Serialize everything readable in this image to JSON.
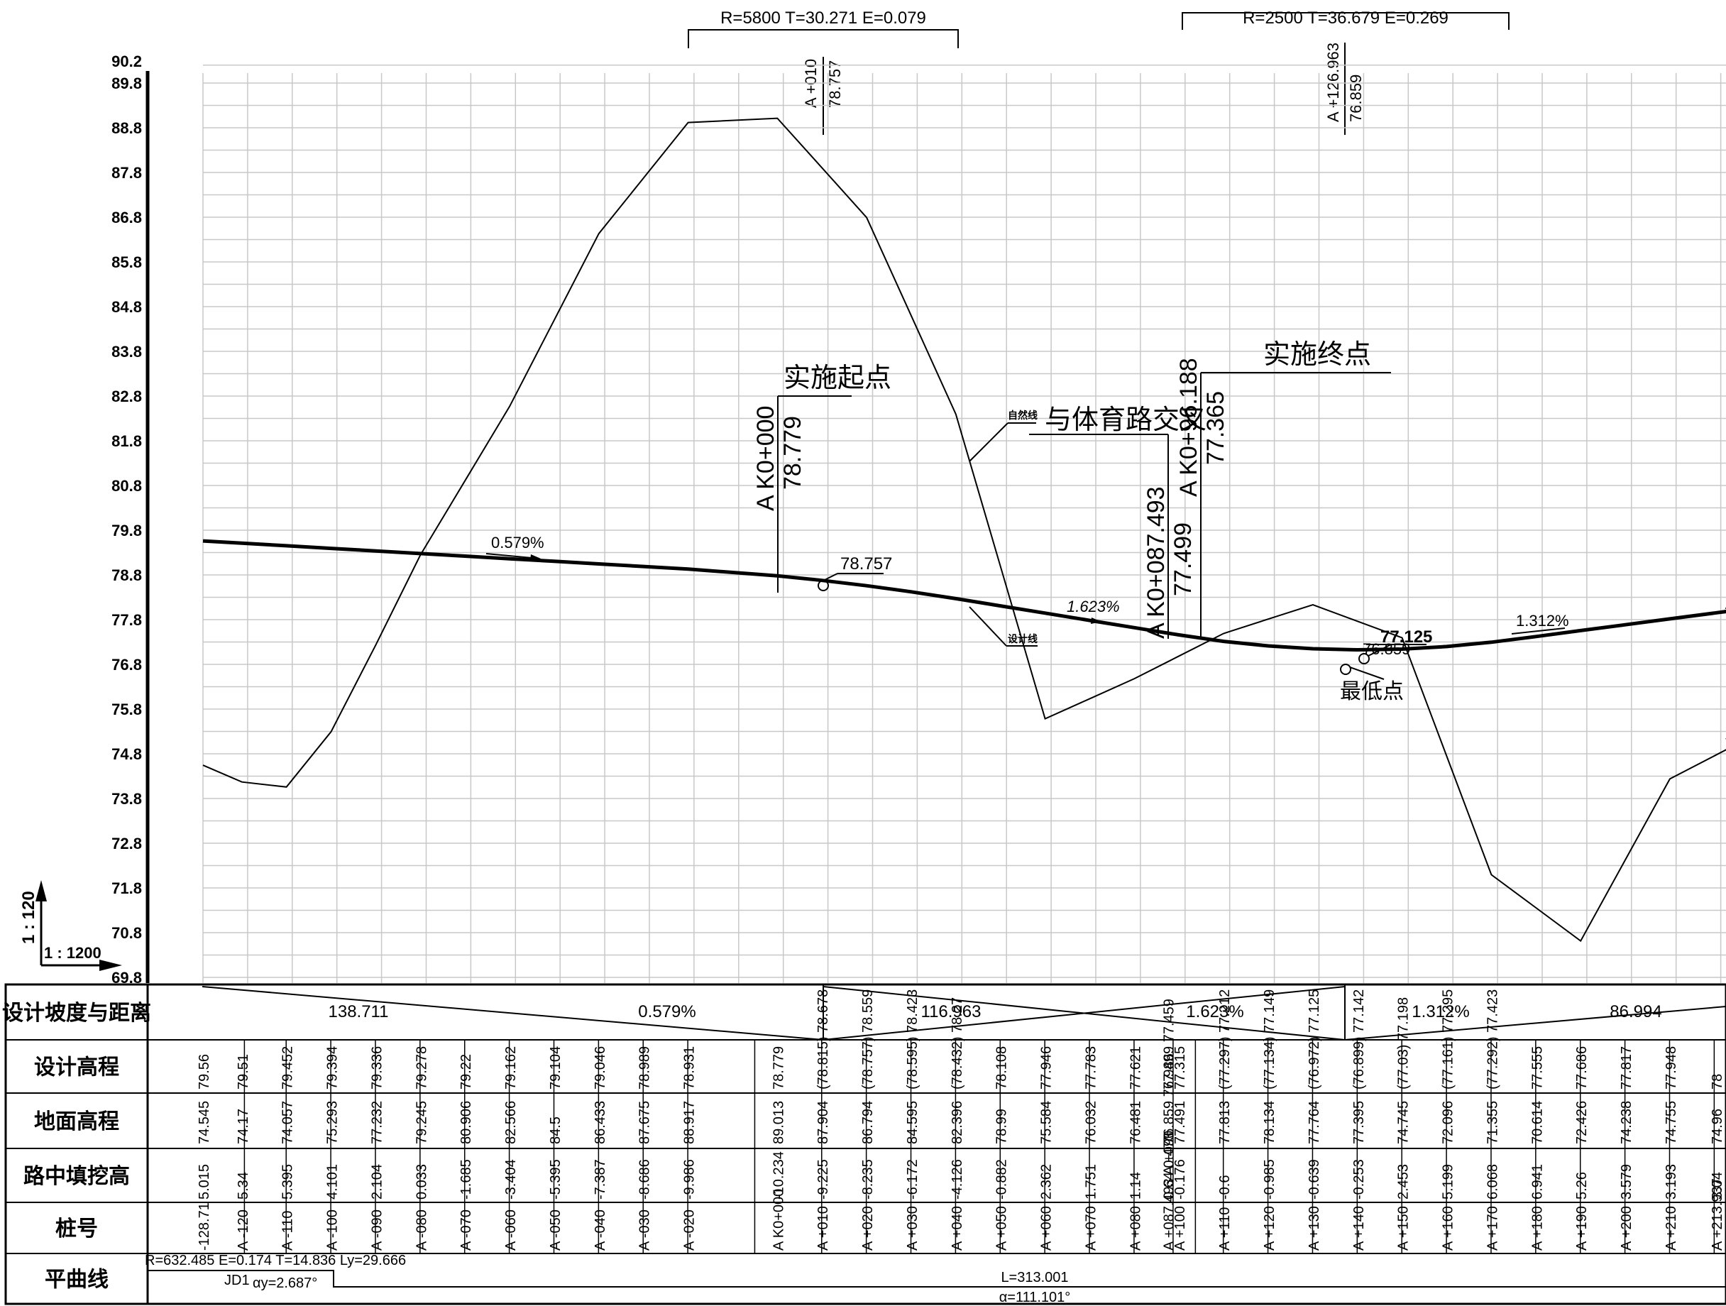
{
  "vertical_curves": [
    {
      "text": "R=5800 T=30.271 E=0.079",
      "station": "A +010",
      "elev": "78.757"
    },
    {
      "text": "R=2500 T=36.679 E=0.269",
      "station": "A +126.963",
      "elev": "76.859"
    }
  ],
  "y_axis": {
    "ticks": [
      "90.2",
      "89.8",
      "88.8",
      "87.8",
      "86.8",
      "85.8",
      "84.8",
      "83.8",
      "82.8",
      "81.8",
      "80.8",
      "79.8",
      "78.8",
      "77.8",
      "76.8",
      "75.8",
      "74.8",
      "73.8",
      "72.8",
      "71.8",
      "70.8",
      "69.8"
    ],
    "vertical_scale": "1 : 120",
    "horizontal_scale": "1 : 1200"
  },
  "annotations": {
    "start_station": "A K0+000",
    "start_elev": "78.779",
    "start_label": "实施起点",
    "end_station": "A K0+96.188",
    "end_elev": "77.365",
    "end_label": "实施终点",
    "cross_station": "A K0+087.493",
    "cross_elev": "77.499",
    "cross_label": "与体育路交叉",
    "natural_line_label": "自然线",
    "design_line_label": "设计线",
    "pvi1_elev": "78.757",
    "lowpoint_label": "最低点",
    "lowpoint_elev_a": "77.125",
    "lowpoint_elev_b": "76.859",
    "grade1": "0.579%",
    "grade2": "1.623%",
    "grade3": "1.312%"
  },
  "row_headers": [
    "设计坡度与距离",
    "设计高程",
    "地面高程",
    "路中填挖高",
    "桩号",
    "平曲线"
  ],
  "grade_row": [
    {
      "length": "138.711",
      "grade": "0.579%"
    },
    {
      "length": "116.963",
      "grade": "1.623%"
    },
    {
      "length": "86.994",
      "grade": "1.312%"
    }
  ],
  "table_columns": [
    {
      "station": "-128.71",
      "design": "79.56",
      "ground": "74.545",
      "cut": "5.015"
    },
    {
      "station": "A -120",
      "design": "79.51",
      "ground": "74.17",
      "cut": "5.34"
    },
    {
      "station": "A -110",
      "design": "79.452",
      "ground": "74.057",
      "cut": "5.395"
    },
    {
      "station": "A -100",
      "design": "79.394",
      "ground": "75.293",
      "cut": "4.101"
    },
    {
      "station": "A -090",
      "design": "79.336",
      "ground": "77.232",
      "cut": "2.104"
    },
    {
      "station": "A -080",
      "design": "79.278",
      "ground": "79.245",
      "cut": "0.033"
    },
    {
      "station": "A -070",
      "design": "79.22",
      "ground": "80.906",
      "cut": "-1.685"
    },
    {
      "station": "A -060",
      "design": "79.162",
      "ground": "82.566",
      "cut": "-3.404"
    },
    {
      "station": "A -050",
      "design": "79.104",
      "ground": "84.5",
      "cut": "-5.395"
    },
    {
      "station": "A -040",
      "design": "79.046",
      "ground": "86.433",
      "cut": "-7.387"
    },
    {
      "station": "A -030",
      "design": "78.989",
      "ground": "87.675",
      "cut": "-8.686"
    },
    {
      "station": "A -020",
      "design": "78.931",
      "ground": "88.917",
      "cut": "-9.986"
    },
    {
      "station": "A K0+000",
      "design": "78.779",
      "ground": "89.013",
      "cut": "-10.234"
    },
    {
      "station": "A +010",
      "design": "(78.815) 78.678",
      "ground": "87.904",
      "cut": "-9.225"
    },
    {
      "station": "A +020",
      "design": "(78.757) 78.559",
      "ground": "86.794",
      "cut": "-8.235"
    },
    {
      "station": "A +030",
      "design": "(78.595) 78.423",
      "ground": "84.595",
      "cut": "-6.172"
    },
    {
      "station": "A +040",
      "design": "(78.432) 78.27",
      "ground": "82.396",
      "cut": "-4.126"
    },
    {
      "station": "A +050",
      "design": "78.108",
      "ground": "78.99",
      "cut": "-0.882"
    },
    {
      "station": "A +060",
      "design": "77.946",
      "ground": "75.584",
      "cut": "2.362"
    },
    {
      "station": "A +070",
      "design": "77.783",
      "ground": "76.032",
      "cut": "1.751"
    },
    {
      "station": "A +080",
      "design": "77.621",
      "ground": "76.481",
      "cut": "1.14"
    },
    {
      "station": "A +087.493 A +090",
      "design": "77.499 77.459",
      "ground": "76.859 76.986",
      "cut": "0.64 0.473"
    },
    {
      "station": "A +100",
      "design": "77.315",
      "ground": "77.491",
      "cut": "-0.176"
    },
    {
      "station": "A +110",
      "design": "(77.297) 77.212",
      "ground": "77.813",
      "cut": "-0.6"
    },
    {
      "station": "A +120",
      "design": "(77.134) 77.149",
      "ground": "78.134",
      "cut": "-0.985"
    },
    {
      "station": "A +130",
      "design": "(76.972) 77.125",
      "ground": "77.764",
      "cut": "-0.639"
    },
    {
      "station": "A +140",
      "design": "(76.899) 77.142",
      "ground": "77.395",
      "cut": "-0.253"
    },
    {
      "station": "A +150",
      "design": "(77.03) 77.198",
      "ground": "74.745",
      "cut": "2.453"
    },
    {
      "station": "A +160",
      "design": "(77.161) 77.295",
      "ground": "72.096",
      "cut": "5.199"
    },
    {
      "station": "A +170",
      "design": "(77.292) 77.423",
      "ground": "71.355",
      "cut": "6.068"
    },
    {
      "station": "A +180",
      "design": "77.555",
      "ground": "70.614",
      "cut": "6.941"
    },
    {
      "station": "A +190",
      "design": "77.686",
      "ground": "72.426",
      "cut": "5.26"
    },
    {
      "station": "A +200",
      "design": "77.817",
      "ground": "74.238",
      "cut": "3.579"
    },
    {
      "station": "A +210",
      "design": "77.948",
      "ground": "74.755",
      "cut": "3.193"
    },
    {
      "station": "A +213.937",
      "design": "78",
      "ground": "74.96",
      "cut": "3.04"
    }
  ],
  "horizontal_curve": {
    "params": "R=632.485 E=0.174 T=14.836 Ly=29.666",
    "jd": "JD1",
    "alpha_y": "αy=2.687°",
    "length": "L=313.001",
    "alpha": "α=111.101°"
  },
  "chart_data": {
    "type": "line",
    "xlabel": "",
    "ylabel": "",
    "ylim": [
      69.8,
      90.2
    ],
    "x": [
      -128.71,
      -120,
      -110,
      -100,
      -90,
      -80,
      -70,
      -60,
      -50,
      -40,
      -30,
      -20,
      0,
      10,
      20,
      30,
      40,
      50,
      60,
      70,
      80,
      87.493,
      90,
      100,
      110,
      120,
      130,
      140,
      150,
      160,
      170,
      180,
      190,
      200,
      210,
      213.937
    ],
    "series": [
      {
        "name": "设计线",
        "values": [
          79.56,
          79.51,
          79.452,
          79.394,
          79.336,
          79.278,
          79.22,
          79.162,
          79.104,
          79.046,
          78.989,
          78.931,
          78.779,
          78.678,
          78.559,
          78.423,
          78.27,
          78.108,
          77.946,
          77.783,
          77.621,
          77.499,
          77.459,
          77.315,
          77.212,
          77.149,
          77.125,
          77.142,
          77.198,
          77.295,
          77.423,
          77.555,
          77.686,
          77.817,
          77.948,
          78
        ]
      },
      {
        "name": "自然线",
        "values": [
          74.545,
          74.17,
          74.057,
          75.293,
          77.232,
          79.245,
          80.906,
          82.566,
          84.5,
          86.433,
          87.675,
          88.917,
          89.013,
          87.904,
          86.794,
          84.595,
          82.396,
          78.99,
          75.584,
          76.032,
          76.481,
          76.859,
          76.986,
          77.491,
          77.813,
          78.134,
          77.764,
          77.395,
          74.745,
          72.096,
          71.355,
          70.614,
          72.426,
          74.238,
          74.755,
          74.96
        ]
      }
    ]
  }
}
